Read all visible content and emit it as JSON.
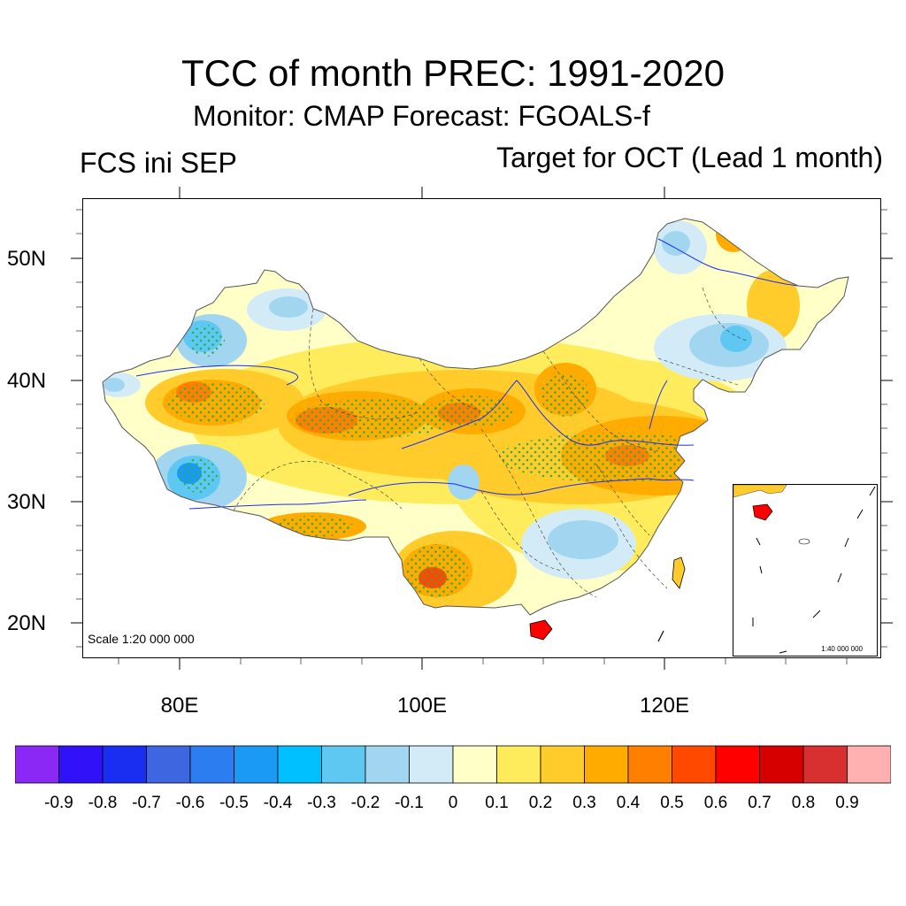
{
  "title": "TCC of month PREC: 1991-2020",
  "subtitle": "Monitor: CMAP   Forecast: FGOALS-f",
  "left_subtitle": "FCS ini SEP",
  "right_subtitle": "Target for OCT (Lead 1 month)",
  "y_axis": {
    "ticks": [
      "50N",
      "40N",
      "30N",
      "20N"
    ],
    "values": [
      50,
      40,
      30,
      20
    ]
  },
  "x_axis": {
    "ticks": [
      "80E",
      "100E",
      "120E"
    ],
    "values": [
      80,
      100,
      120
    ]
  },
  "map_extent": {
    "lon": [
      72,
      138
    ],
    "lat": [
      17,
      55
    ]
  },
  "scale_text": "Scale 1:20 000 000",
  "inset_scale_text": "1:40 000 000",
  "significance_marker": "green dots",
  "colorbar": {
    "colors": [
      "#8b28f5",
      "#3112f8",
      "#1a2ef2",
      "#3d66e0",
      "#2b7df0",
      "#1b9af5",
      "#00c0ff",
      "#5fc8f2",
      "#a2d6f0",
      "#d2ebf6",
      "#ffffc8",
      "#ffec5c",
      "#ffcc2b",
      "#ffab00",
      "#ff8000",
      "#ff4800",
      "#ff0000",
      "#d60000",
      "#d83030",
      "#ffb0b0"
    ],
    "labels": [
      "-0.9",
      "-0.8",
      "-0.7",
      "-0.6",
      "-0.5",
      "-0.4",
      "-0.3",
      "-0.2",
      "-0.1",
      "0",
      "0.1",
      "0.2",
      "0.3",
      "0.4",
      "0.5",
      "0.6",
      "0.7",
      "0.8",
      "0.9"
    ]
  }
}
